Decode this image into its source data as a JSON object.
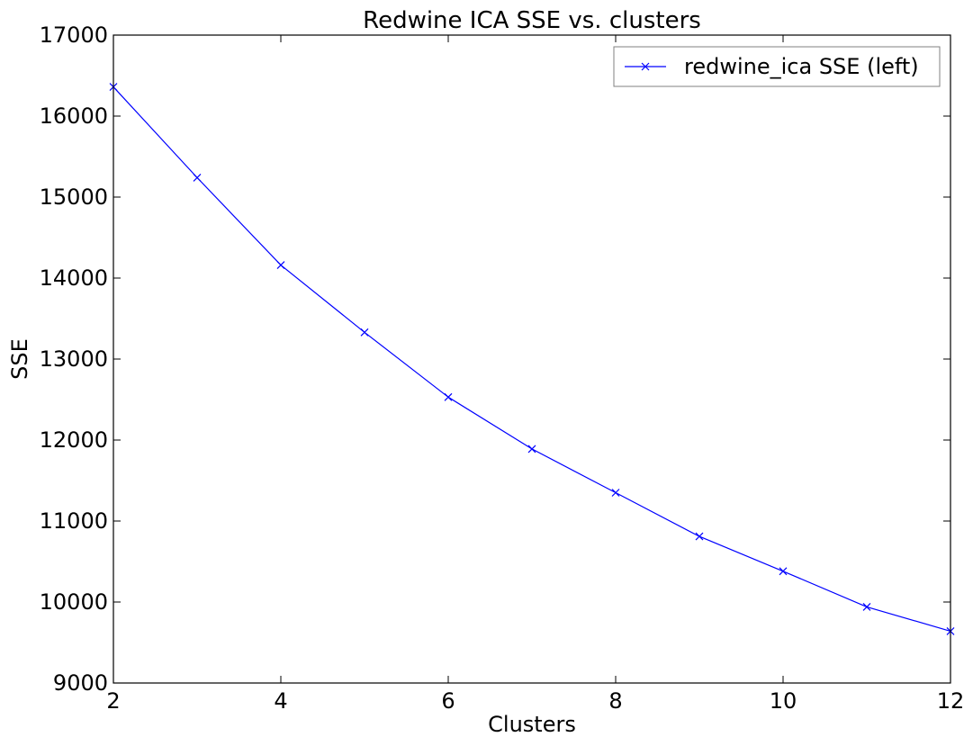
{
  "chart_data": {
    "type": "line",
    "title": "Redwine ICA SSE vs. clusters",
    "xlabel": "Clusters",
    "ylabel": "SSE",
    "xlim": [
      2,
      12
    ],
    "ylim": [
      9000,
      17000
    ],
    "xticks": [
      2,
      4,
      6,
      8,
      10,
      12
    ],
    "yticks": [
      9000,
      10000,
      11000,
      12000,
      13000,
      14000,
      15000,
      16000,
      17000
    ],
    "grid": false,
    "legend_position": "top-right",
    "series": [
      {
        "name": "redwine_ica SSE (left)",
        "color": "#0000ff",
        "marker": "x",
        "x": [
          2,
          3,
          4,
          5,
          6,
          7,
          8,
          9,
          10,
          11,
          12
        ],
        "y": [
          16360,
          15240,
          14160,
          13330,
          12530,
          11890,
          11350,
          10810,
          10380,
          9940,
          9640
        ]
      }
    ]
  }
}
